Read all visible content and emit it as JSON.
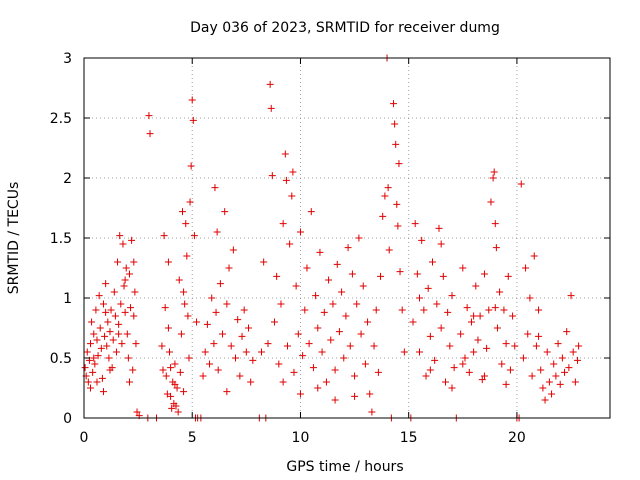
{
  "chart_data": {
    "type": "scatter",
    "title": "Day 036 of 2023, SRMTID for receiver dumg",
    "xlabel": "GPS time / hours",
    "ylabel": "SRMTID / TECUs",
    "xlim": [
      0,
      24.3
    ],
    "ylim": [
      0,
      3
    ],
    "xticks": [
      0,
      5,
      10,
      15,
      20
    ],
    "yticks": [
      0,
      0.5,
      1,
      1.5,
      2,
      2.5,
      3
    ],
    "xtick_labels": [
      "0",
      "5",
      "10",
      "15",
      "20"
    ],
    "ytick_labels": [
      "0",
      "0.5",
      "1",
      "1.5",
      "2",
      "2.5",
      "3"
    ],
    "grid": true,
    "marker": "+",
    "color": "#e00000",
    "series": [
      {
        "name": "SRMTID",
        "points": [
          [
            0.05,
            0.42
          ],
          [
            0.1,
            0.35
          ],
          [
            0.15,
            0.55
          ],
          [
            0.2,
            0.3
          ],
          [
            0.25,
            0.48
          ],
          [
            0.3,
            0.62
          ],
          [
            0.35,
            0.8
          ],
          [
            0.4,
            0.38
          ],
          [
            0.45,
            0.7
          ],
          [
            0.5,
            0.45
          ],
          [
            0.55,
            0.9
          ],
          [
            0.6,
            0.65
          ],
          [
            0.65,
            0.52
          ],
          [
            0.7,
            1.02
          ],
          [
            0.75,
            0.75
          ],
          [
            0.8,
            0.58
          ],
          [
            0.85,
            0.33
          ],
          [
            0.9,
            0.95
          ],
          [
            0.95,
            0.68
          ],
          [
            1.0,
            1.12
          ],
          [
            1.05,
            0.6
          ],
          [
            1.1,
            0.8
          ],
          [
            1.15,
            0.5
          ],
          [
            1.2,
            0.72
          ],
          [
            1.25,
            0.9
          ],
          [
            1.3,
            0.42
          ],
          [
            1.35,
            0.65
          ],
          [
            1.4,
            1.05
          ],
          [
            1.45,
            0.85
          ],
          [
            1.5,
            0.55
          ],
          [
            1.55,
            1.3
          ],
          [
            1.6,
            0.78
          ],
          [
            1.65,
            1.52
          ],
          [
            1.7,
            0.95
          ],
          [
            1.75,
            0.62
          ],
          [
            1.8,
            1.45
          ],
          [
            1.85,
            1.1
          ],
          [
            1.9,
            0.88
          ],
          [
            1.95,
            1.25
          ],
          [
            2.0,
            0.7
          ],
          [
            2.05,
            0.5
          ],
          [
            2.1,
            1.2
          ],
          [
            2.15,
            0.92
          ],
          [
            2.2,
            1.48
          ],
          [
            2.25,
            0.4
          ],
          [
            2.3,
            0.85
          ],
          [
            2.35,
            1.05
          ],
          [
            2.4,
            0.62
          ],
          [
            2.45,
            0.05
          ],
          [
            2.55,
            0.02
          ],
          [
            0.3,
            0.25
          ],
          [
            0.6,
            0.3
          ],
          [
            0.9,
            0.22
          ],
          [
            1.2,
            0.4
          ],
          [
            1.6,
            0.7
          ],
          [
            2.1,
            0.3
          ],
          [
            0.45,
            0.5
          ],
          [
            1.0,
            0.88
          ],
          [
            1.9,
            1.15
          ],
          [
            2.3,
            1.3
          ],
          [
            2.95,
            0.0
          ],
          [
            3.0,
            2.52
          ],
          [
            3.05,
            2.37
          ],
          [
            3.35,
            0.0
          ],
          [
            3.6,
            0.6
          ],
          [
            3.65,
            0.4
          ],
          [
            3.7,
            1.52
          ],
          [
            3.75,
            0.92
          ],
          [
            3.8,
            0.35
          ],
          [
            3.85,
            0.2
          ],
          [
            3.9,
            1.3
          ],
          [
            3.95,
            0.55
          ],
          [
            4.0,
            0.18
          ],
          [
            4.05,
            0.08
          ],
          [
            4.1,
            0.3
          ],
          [
            4.15,
            0.12
          ],
          [
            4.2,
            0.45
          ],
          [
            4.25,
            0.1
          ],
          [
            4.3,
            0.25
          ],
          [
            4.35,
            0.05
          ],
          [
            4.4,
            1.15
          ],
          [
            4.45,
            0.38
          ],
          [
            4.5,
            0.7
          ],
          [
            4.55,
            1.72
          ],
          [
            4.6,
            0.22
          ],
          [
            4.65,
            0.95
          ],
          [
            4.7,
            1.62
          ],
          [
            4.75,
            1.35
          ],
          [
            4.8,
            0.85
          ],
          [
            4.85,
            0.5
          ],
          [
            4.9,
            1.8
          ],
          [
            4.95,
            2.1
          ],
          [
            5.0,
            2.65
          ],
          [
            5.05,
            2.48
          ],
          [
            5.1,
            1.52
          ],
          [
            5.15,
            0.0
          ],
          [
            5.2,
            0.8
          ],
          [
            5.25,
            0.0
          ],
          [
            5.4,
            0.0
          ],
          [
            5.5,
            0.35
          ],
          [
            5.6,
            0.55
          ],
          [
            5.7,
            0.78
          ],
          [
            5.8,
            0.45
          ],
          [
            5.9,
            1.0
          ],
          [
            6.0,
            0.62
          ],
          [
            6.05,
            1.92
          ],
          [
            6.1,
            0.88
          ],
          [
            6.15,
            1.55
          ],
          [
            6.2,
            0.4
          ],
          [
            6.3,
            1.12
          ],
          [
            6.4,
            0.7
          ],
          [
            6.5,
            1.72
          ],
          [
            6.6,
            0.95
          ],
          [
            6.7,
            1.25
          ],
          [
            6.8,
            0.6
          ],
          [
            6.9,
            1.4
          ],
          [
            7.0,
            0.5
          ],
          [
            7.1,
            0.82
          ],
          [
            7.2,
            0.35
          ],
          [
            7.3,
            0.68
          ],
          [
            7.4,
            0.9
          ],
          [
            7.5,
            0.55
          ],
          [
            7.6,
            0.75
          ],
          [
            7.7,
            0.3
          ],
          [
            7.8,
            0.48
          ],
          [
            4.0,
            0.42
          ],
          [
            4.2,
            0.28
          ],
          [
            3.9,
            0.75
          ],
          [
            4.6,
            1.05
          ],
          [
            6.6,
            0.22
          ],
          [
            8.1,
            0.0
          ],
          [
            8.2,
            0.55
          ],
          [
            8.3,
            1.3
          ],
          [
            8.4,
            0.0
          ],
          [
            8.5,
            0.62
          ],
          [
            8.6,
            2.78
          ],
          [
            8.65,
            2.58
          ],
          [
            8.7,
            2.02
          ],
          [
            8.8,
            0.8
          ],
          [
            8.9,
            1.18
          ],
          [
            9.0,
            0.45
          ],
          [
            9.1,
            0.95
          ],
          [
            9.2,
            1.62
          ],
          [
            9.3,
            2.2
          ],
          [
            9.35,
            1.98
          ],
          [
            9.4,
            0.6
          ],
          [
            9.5,
            1.45
          ],
          [
            9.6,
            1.85
          ],
          [
            9.65,
            2.05
          ],
          [
            9.7,
            0.38
          ],
          [
            9.8,
            1.1
          ],
          [
            9.9,
            0.7
          ],
          [
            10.0,
            1.55
          ],
          [
            10.1,
            0.52
          ],
          [
            10.2,
            0.9
          ],
          [
            10.3,
            1.25
          ],
          [
            10.4,
            0.62
          ],
          [
            10.5,
            1.72
          ],
          [
            10.6,
            0.42
          ],
          [
            10.7,
            1.02
          ],
          [
            10.8,
            0.75
          ],
          [
            10.9,
            1.38
          ],
          [
            11.0,
            0.55
          ],
          [
            11.1,
            0.88
          ],
          [
            11.2,
            0.3
          ],
          [
            11.3,
            1.15
          ],
          [
            11.4,
            0.65
          ],
          [
            11.5,
            0.95
          ],
          [
            11.6,
            0.4
          ],
          [
            11.7,
            1.28
          ],
          [
            11.8,
            0.72
          ],
          [
            11.9,
            1.05
          ],
          [
            12.0,
            0.5
          ],
          [
            12.1,
            0.85
          ],
          [
            12.2,
            1.42
          ],
          [
            12.3,
            0.6
          ],
          [
            12.4,
            1.2
          ],
          [
            12.5,
            0.35
          ],
          [
            12.6,
            0.95
          ],
          [
            12.7,
            1.5
          ],
          [
            12.8,
            0.7
          ],
          [
            12.9,
            1.1
          ],
          [
            13.0,
            0.45
          ],
          [
            13.1,
            0.8
          ],
          [
            13.2,
            0.2
          ],
          [
            13.3,
            0.05
          ],
          [
            13.4,
            0.6
          ],
          [
            13.5,
            0.9
          ],
          [
            13.6,
            0.38
          ],
          [
            13.7,
            1.18
          ],
          [
            13.8,
            1.68
          ],
          [
            13.9,
            1.85
          ],
          [
            14.0,
            3.0
          ],
          [
            14.05,
            1.92
          ],
          [
            14.1,
            1.4
          ],
          [
            14.2,
            0.0
          ],
          [
            14.3,
            2.62
          ],
          [
            14.35,
            2.45
          ],
          [
            14.4,
            2.28
          ],
          [
            14.45,
            1.78
          ],
          [
            14.5,
            1.6
          ],
          [
            14.55,
            2.12
          ],
          [
            14.6,
            1.22
          ],
          [
            14.7,
            0.9
          ],
          [
            14.8,
            0.55
          ],
          [
            9.2,
            0.3
          ],
          [
            10.0,
            0.2
          ],
          [
            10.8,
            0.25
          ],
          [
            11.6,
            0.15
          ],
          [
            12.5,
            0.18
          ],
          [
            15.1,
            0.0
          ],
          [
            15.2,
            0.8
          ],
          [
            15.3,
            1.62
          ],
          [
            15.4,
            1.2
          ],
          [
            15.5,
            0.55
          ],
          [
            15.6,
            1.48
          ],
          [
            15.7,
            0.9
          ],
          [
            15.8,
            0.35
          ],
          [
            15.9,
            1.08
          ],
          [
            16.0,
            0.68
          ],
          [
            16.1,
            1.3
          ],
          [
            16.2,
            0.48
          ],
          [
            16.3,
            0.95
          ],
          [
            16.4,
            1.58
          ],
          [
            16.5,
            0.75
          ],
          [
            16.6,
            1.18
          ],
          [
            16.7,
            0.3
          ],
          [
            16.8,
            0.88
          ],
          [
            16.9,
            0.6
          ],
          [
            17.0,
            1.02
          ],
          [
            17.1,
            0.42
          ],
          [
            17.2,
            0.0
          ],
          [
            17.4,
            0.7
          ],
          [
            17.5,
            1.25
          ],
          [
            17.6,
            0.5
          ],
          [
            17.7,
            0.92
          ],
          [
            17.8,
            0.38
          ],
          [
            17.9,
            0.8
          ],
          [
            18.0,
            0.55
          ],
          [
            18.1,
            1.1
          ],
          [
            18.2,
            0.65
          ],
          [
            18.3,
            0.85
          ],
          [
            18.4,
            0.32
          ],
          [
            18.5,
            1.2
          ],
          [
            18.6,
            0.58
          ],
          [
            18.7,
            0.9
          ],
          [
            18.8,
            1.8
          ],
          [
            18.9,
            2.0
          ],
          [
            18.95,
            2.05
          ],
          [
            19.0,
            1.62
          ],
          [
            19.05,
            1.42
          ],
          [
            19.1,
            0.75
          ],
          [
            19.2,
            1.05
          ],
          [
            19.3,
            0.45
          ],
          [
            19.4,
            0.9
          ],
          [
            19.5,
            0.62
          ],
          [
            19.6,
            1.18
          ],
          [
            19.7,
            0.4
          ],
          [
            19.8,
            0.85
          ],
          [
            19.9,
            0.6
          ],
          [
            20.0,
            0.0
          ],
          [
            20.1,
            0.0
          ],
          [
            20.2,
            1.95
          ],
          [
            20.3,
            0.5
          ],
          [
            20.4,
            1.25
          ],
          [
            20.5,
            0.7
          ],
          [
            20.6,
            1.0
          ],
          [
            20.7,
            0.35
          ],
          [
            20.8,
            1.35
          ],
          [
            20.9,
            0.6
          ],
          [
            21.0,
            0.9
          ],
          [
            21.1,
            0.4
          ],
          [
            21.2,
            0.25
          ],
          [
            21.3,
            0.15
          ],
          [
            21.4,
            0.55
          ],
          [
            21.5,
            0.3
          ],
          [
            21.6,
            0.2
          ],
          [
            21.7,
            0.45
          ],
          [
            21.8,
            0.35
          ],
          [
            21.9,
            0.62
          ],
          [
            22.0,
            0.28
          ],
          [
            22.1,
            0.5
          ],
          [
            22.2,
            0.38
          ],
          [
            22.3,
            0.72
          ],
          [
            22.4,
            0.42
          ],
          [
            22.5,
            1.02
          ],
          [
            22.6,
            0.55
          ],
          [
            22.7,
            0.3
          ],
          [
            22.8,
            0.48
          ],
          [
            22.85,
            0.6
          ],
          [
            15.5,
            1.0
          ],
          [
            16.0,
            0.4
          ],
          [
            16.5,
            1.45
          ],
          [
            17.0,
            0.25
          ],
          [
            17.5,
            0.45
          ],
          [
            18.0,
            0.85
          ],
          [
            18.5,
            0.35
          ],
          [
            19.0,
            0.92
          ],
          [
            19.5,
            0.28
          ],
          [
            21.0,
            0.68
          ]
        ]
      }
    ]
  }
}
